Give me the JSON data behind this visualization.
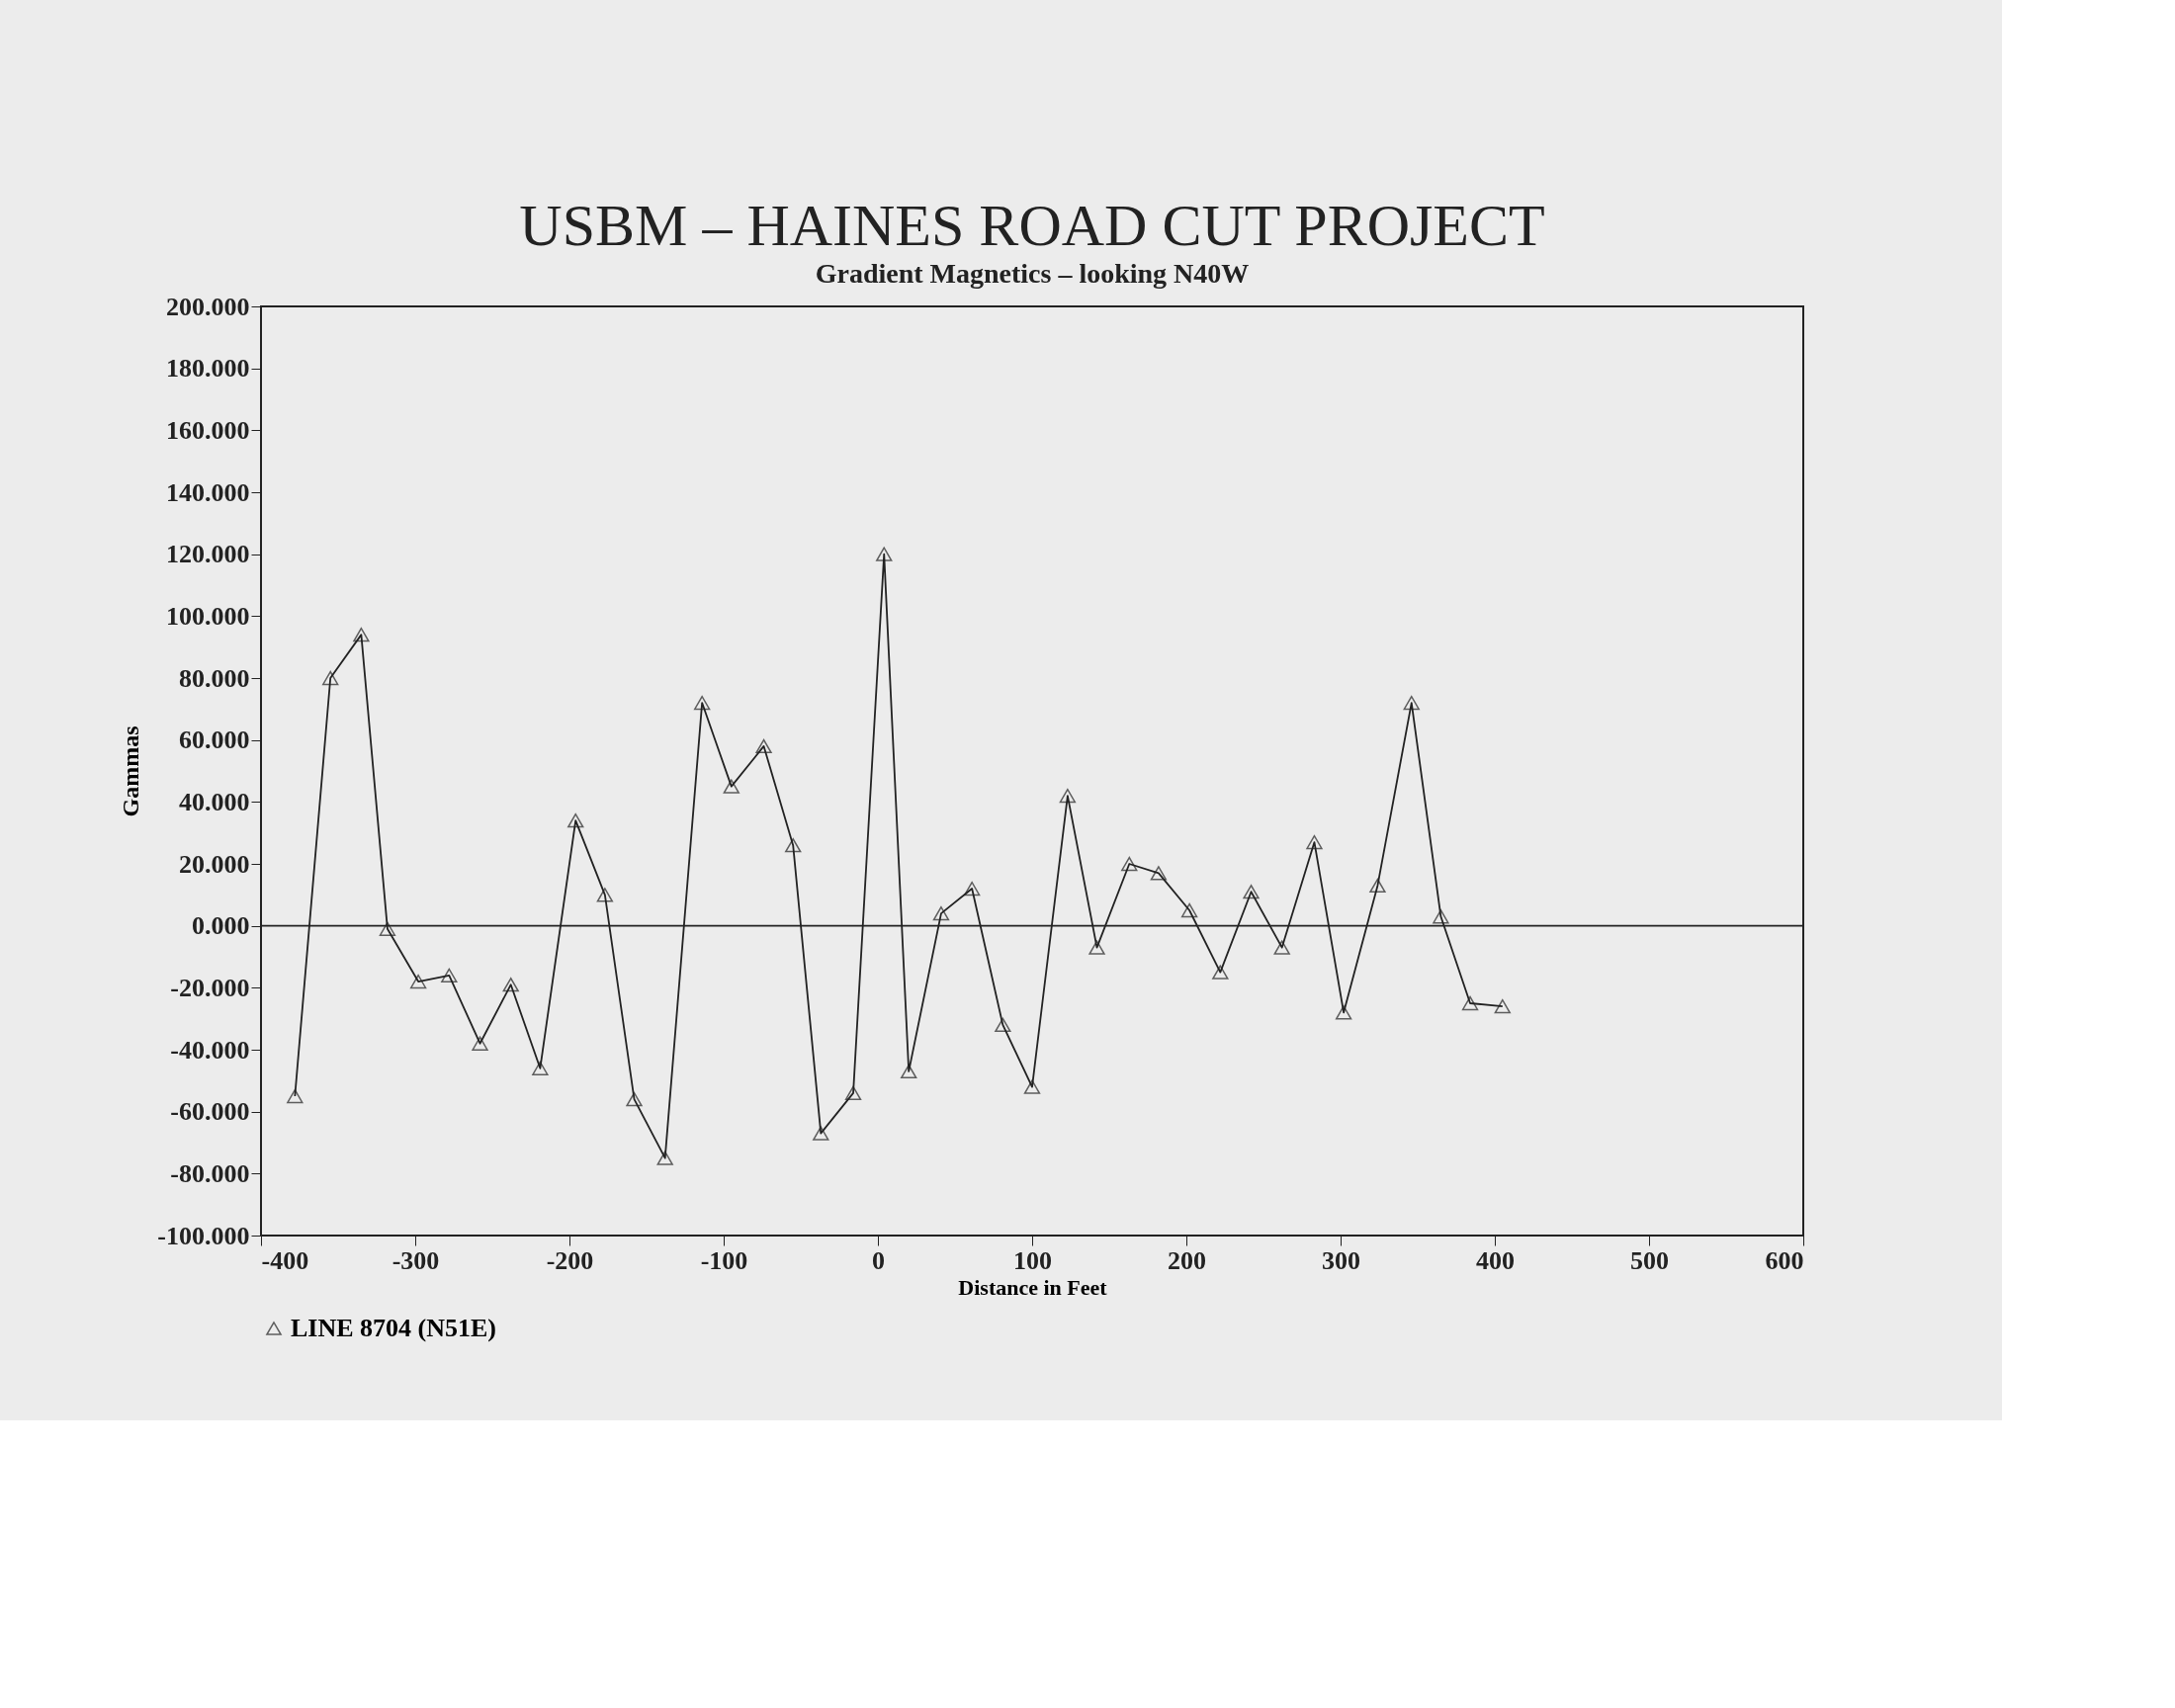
{
  "chart_data": {
    "type": "line",
    "title": "USBM  –  HAINES ROAD CUT PROJECT",
    "subtitle": "Gradient Magnetics – looking N40W",
    "xlabel": "Distance in Feet",
    "ylabel": "Gammas",
    "series": [
      {
        "name": "LINE 8704 (N51E)",
        "color": "#222222",
        "x": [
          -378,
          -355,
          -335,
          -318,
          -298,
          -278,
          -258,
          -238,
          -219,
          -196,
          -177,
          -158,
          -138,
          -114,
          -95,
          -74,
          -55,
          -37,
          -16,
          4,
          20,
          41,
          61,
          81,
          100,
          123,
          142,
          163,
          182,
          202,
          222,
          242,
          262,
          283,
          302,
          324,
          346,
          365,
          384,
          405
        ],
        "values": [
          -55,
          80,
          94,
          -1,
          -18,
          -16,
          -38,
          -19,
          -46,
          34,
          10,
          -56,
          -75,
          72,
          45,
          58,
          26,
          -67,
          -54,
          120,
          -47,
          4,
          12,
          -32,
          -52,
          42,
          -7,
          20,
          17,
          5,
          -15,
          11,
          -7,
          27,
          -28,
          13,
          72,
          3,
          -25,
          -26
        ]
      }
    ],
    "xlim": [
      -400,
      600
    ],
    "xticks": [
      -400,
      -300,
      -200,
      -100,
      0,
      100,
      200,
      300,
      400,
      500,
      600
    ],
    "ylim": [
      -100,
      200
    ],
    "yticks": [
      {
        "value": -100,
        "label": "-100.000"
      },
      {
        "value": -80,
        "label": "-80.000"
      },
      {
        "value": -60,
        "label": "-60.000"
      },
      {
        "value": -40,
        "label": "-40.000"
      },
      {
        "value": -20,
        "label": "-20.000"
      },
      {
        "value": 0,
        "label": "0.000"
      },
      {
        "value": 20,
        "label": "20.000"
      },
      {
        "value": 40,
        "label": "40.000"
      },
      {
        "value": 60,
        "label": "60.000"
      },
      {
        "value": 80,
        "label": "80.000"
      },
      {
        "value": 100,
        "label": "100.000"
      },
      {
        "value": 120,
        "label": "120.000"
      },
      {
        "value": 140,
        "label": "140.000"
      },
      {
        "value": 160,
        "label": "160.000"
      },
      {
        "value": 180,
        "label": "180.000"
      },
      {
        "value": 200,
        "label": "200.000"
      }
    ],
    "ref_lines": [
      {
        "axis": "y",
        "value": 0,
        "color": "#222222"
      }
    ],
    "marker": "triangle",
    "line_style": "solid",
    "grid": false,
    "legend": "bottom"
  }
}
